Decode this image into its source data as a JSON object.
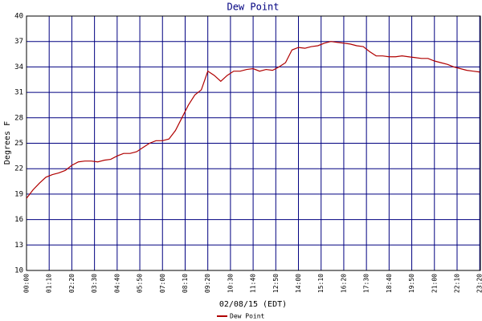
{
  "chart_data": {
    "type": "line",
    "title": "Dew Point",
    "x_label": "02/08/15 (EDT)",
    "y_label": "Degrees F",
    "x": [
      0,
      20,
      40,
      60,
      80,
      100,
      120,
      140,
      160,
      180,
      200,
      220,
      240,
      260,
      280,
      300,
      320,
      340,
      360,
      380,
      400,
      420,
      440,
      460,
      480,
      500,
      520,
      540,
      560,
      580,
      600,
      620,
      640,
      660,
      680,
      700,
      720,
      740,
      760,
      780,
      800,
      820,
      840,
      860,
      880,
      900,
      920,
      940,
      960,
      980,
      1000,
      1020,
      1040,
      1060,
      1080,
      1100,
      1120,
      1140,
      1160,
      1180,
      1200,
      1220,
      1240,
      1260,
      1280,
      1300,
      1320,
      1340,
      1360,
      1380,
      1400
    ],
    "series": [
      {
        "name": "Dew Point",
        "color": "#b00000",
        "values": [
          18.5,
          19.5,
          20.3,
          21,
          21.3,
          21.5,
          21.8,
          22.4,
          22.8,
          22.9,
          22.9,
          22.8,
          23.0,
          23.1,
          23.5,
          23.8,
          23.8,
          24.0,
          24.5,
          25.0,
          25.3,
          25.3,
          25.5,
          26.5,
          28,
          29.5,
          30.7,
          31.3,
          33.5,
          33,
          32.3,
          33,
          33.5,
          33.5,
          33.7,
          33.8,
          33.5,
          33.7,
          33.6,
          34.0,
          34.5,
          36.0,
          36.3,
          36.2,
          36.4,
          36.5,
          36.8,
          37.0,
          36.9,
          36.8,
          36.7,
          36.5,
          36.4,
          35.8,
          35.3,
          35.3,
          35.2,
          35.2,
          35.3,
          35.2,
          35.1,
          35.0,
          35.0,
          34.7,
          34.5,
          34.3,
          34.0,
          33.8,
          33.6,
          33.5,
          33.4
        ]
      }
    ],
    "xlim": [
      0,
      1402
    ],
    "xticks": [
      {
        "value": 0,
        "label": "00:00"
      },
      {
        "value": 70,
        "label": "01:10"
      },
      {
        "value": 140,
        "label": "02:20"
      },
      {
        "value": 210,
        "label": "03:30"
      },
      {
        "value": 280,
        "label": "04:40"
      },
      {
        "value": 350,
        "label": "05:50"
      },
      {
        "value": 420,
        "label": "07:00"
      },
      {
        "value": 490,
        "label": "08:10"
      },
      {
        "value": 560,
        "label": "09:20"
      },
      {
        "value": 630,
        "label": "10:30"
      },
      {
        "value": 700,
        "label": "11:40"
      },
      {
        "value": 770,
        "label": "12:50"
      },
      {
        "value": 840,
        "label": "14:00"
      },
      {
        "value": 910,
        "label": "15:10"
      },
      {
        "value": 980,
        "label": "16:20"
      },
      {
        "value": 1050,
        "label": "17:30"
      },
      {
        "value": 1120,
        "label": "18:40"
      },
      {
        "value": 1190,
        "label": "19:50"
      },
      {
        "value": 1260,
        "label": "21:00"
      },
      {
        "value": 1330,
        "label": "22:10"
      },
      {
        "value": 1400,
        "label": "23:20"
      }
    ],
    "ylim": [
      10,
      40
    ],
    "yticks": [
      10,
      13,
      16,
      19,
      22,
      25,
      28,
      31,
      34,
      37,
      40
    ],
    "grid": true,
    "grid_color": "#000080"
  }
}
